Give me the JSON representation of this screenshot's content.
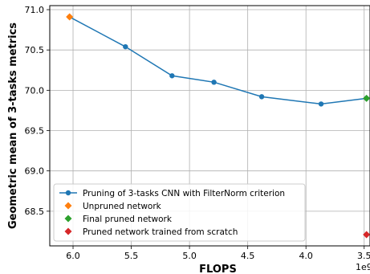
{
  "chart_data": {
    "type": "line",
    "xlabel": "FLOPS",
    "ylabel": "Geometric mean of 3-tasks metrics",
    "x_offset_label": "1e9",
    "x_reversed": true,
    "xlim": [
      6.2,
      3.45
    ],
    "ylim": [
      68.07,
      71.05
    ],
    "x_ticks": [
      6.0,
      5.5,
      5.0,
      4.5,
      4.0,
      3.5
    ],
    "x_tick_labels": [
      "6.0",
      "5.5",
      "5.0",
      "4.5",
      "4.0",
      "3.5"
    ],
    "y_ticks": [
      68.5,
      69.0,
      69.5,
      70.0,
      70.5,
      71.0
    ],
    "y_tick_labels": [
      "68.5",
      "69.0",
      "69.5",
      "70.0",
      "70.5",
      "71.0"
    ],
    "grid": true,
    "legend_position": "lower-left",
    "series": [
      {
        "name": "Pruning of 3-tasks CNN with FilterNorm criterion",
        "kind": "line",
        "marker": "circle",
        "color": "#1f77b4",
        "x": [
          6.03,
          5.55,
          5.15,
          4.79,
          4.38,
          3.87,
          3.48
        ],
        "y": [
          70.91,
          70.54,
          70.18,
          70.1,
          69.92,
          69.83,
          69.9
        ]
      },
      {
        "name": "Unpruned network",
        "kind": "marker",
        "marker": "diamond",
        "color": "#ff7f0e",
        "x": [
          6.03
        ],
        "y": [
          70.91
        ]
      },
      {
        "name": "Final pruned network",
        "kind": "marker",
        "marker": "diamond",
        "color": "#2ca02c",
        "x": [
          3.48
        ],
        "y": [
          69.9
        ]
      },
      {
        "name": "Pruned network trained from scratch",
        "kind": "marker",
        "marker": "diamond",
        "color": "#d62728",
        "x": [
          3.48
        ],
        "y": [
          68.21
        ]
      }
    ]
  }
}
